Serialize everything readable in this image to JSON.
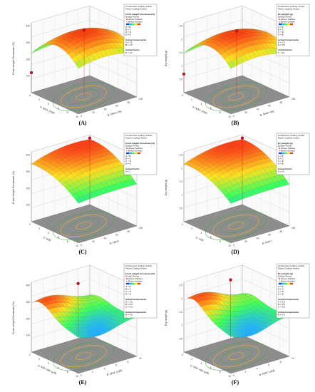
{
  "figure": {
    "panels": [
      {
        "id": "A",
        "label": "(A)",
        "chart_type": "surface3d",
        "z_axis_label": "Fresh weight Cercaceae (%)",
        "x_axis_label": "X: NO3- (mM)",
        "y_axis_label": "B: NH4+ (%)",
        "z_ticks": [
          "100",
          "200",
          "300",
          "400"
        ],
        "x_ticks": [
          "0",
          "2",
          "4",
          "6",
          "8",
          "10"
        ],
        "y_ticks": [
          "0",
          "20",
          "40",
          "60",
          "80",
          "100"
        ],
        "legend": {
          "heading": [
            "Component Coding: Actual",
            "Factor Coding: Actual"
          ],
          "response": "Fresh weight Cercaceae (%)",
          "sub": "Design Points",
          "points": [
            "Above Surface",
            "Below Surface"
          ],
          "factors_title": "",
          "factors": [
            "A = B",
            "B = C",
            "C = D",
            "D = E"
          ],
          "actual_components_title": "Actual Components",
          "actual_components": [
            "A = 1.5",
            "B = 0.5"
          ],
          "actual_factor_title": "Actual Factor",
          "actual_factor": [
            "C = 10"
          ]
        }
      },
      {
        "id": "B",
        "label": "(B)",
        "chart_type": "surface3d",
        "z_axis_label": "Dry weight (g)",
        "x_axis_label": "X: NO3- (mM)",
        "y_axis_label": "B: NH4+ (%)",
        "z_ticks": [
          "0.5",
          "1",
          "1.5",
          "2",
          "2.5"
        ],
        "x_ticks": [
          "0",
          "2",
          "4",
          "6",
          "8",
          "10"
        ],
        "y_ticks": [
          "0",
          "20",
          "40",
          "60",
          "80",
          "100"
        ],
        "legend": {
          "heading": [
            "Component Coding: Actual",
            "Factor Coding: Actual"
          ],
          "response": "Dry weight (g)",
          "sub": "Design Points",
          "points": [
            "Above Surface",
            "Below Surface"
          ],
          "factors_title": "",
          "factors": [
            "A = B",
            "B = C",
            "C = D",
            "D = E"
          ],
          "actual_components_title": "Actual Components",
          "actual_components": [
            "A = 1.5",
            "B = 0.5"
          ],
          "actual_factor_title": "Actual Factor",
          "actual_factor": [
            "C = 10"
          ]
        }
      },
      {
        "id": "C",
        "label": "(C)",
        "chart_type": "surface3d",
        "z_axis_label": "Fresh weight Cercaceae (%)",
        "x_axis_label": "C: KNF",
        "y_axis_label": "B: NH4+",
        "z_ticks": [
          "100",
          "200",
          "300",
          "400"
        ],
        "x_ticks": [
          "0",
          "2",
          "4",
          "6",
          "8",
          "10"
        ],
        "y_ticks": [
          "0",
          "20",
          "40",
          "60",
          "80",
          "100"
        ],
        "legend": {
          "heading": [
            "Component Coding: Actual",
            "Factor Coding: Actual"
          ],
          "response": "Fresh weight Cercaceae (%)",
          "sub": "Design Points",
          "points": [
            "Above Surface",
            "Below Surface"
          ],
          "factors_title": "",
          "factors": [
            "A = B",
            "B = C",
            "C = D",
            "D = E"
          ],
          "actual_components_title": "",
          "actual_components": [],
          "actual_factor_title": "Actual Factor",
          "actual_factor": [
            "A = 1"
          ]
        }
      },
      {
        "id": "D",
        "label": "(D)",
        "chart_type": "surface3d",
        "z_axis_label": "Dry weight (g)",
        "x_axis_label": "C: KNF",
        "y_axis_label": "B: NH4+",
        "z_ticks": [
          "0.5",
          "1",
          "1.5",
          "2",
          "2.5"
        ],
        "x_ticks": [
          "0",
          "2",
          "4",
          "6",
          "8",
          "10"
        ],
        "y_ticks": [
          "0",
          "20",
          "40",
          "60",
          "80",
          "100"
        ],
        "legend": {
          "heading": [
            "Component Coding: Actual",
            "Factor Coding: Actual"
          ],
          "response": "Dry weight (g)",
          "sub": "Design Points",
          "points": [
            "Above Surface",
            "Below Surface"
          ],
          "factors_title": "",
          "factors": [
            "A = B",
            "B = C",
            "C = D",
            "D = E"
          ],
          "actual_components_title": "",
          "actual_components": [],
          "actual_factor_title": "Actual Factor",
          "actual_factor": [
            "A = 10"
          ]
        }
      },
      {
        "id": "E",
        "label": "(E)",
        "chart_type": "surface3d",
        "z_axis_label": "Fresh weight Cercaceae (%)",
        "x_axis_label": "C: KNF ratio (µM)",
        "y_axis_label": "B: NO3- (mM)",
        "z_ticks": [
          "100",
          "200",
          "300",
          "400"
        ],
        "x_ticks": [
          "0",
          "2",
          "4",
          "6",
          "8",
          "10"
        ],
        "y_ticks": [
          "0",
          "2",
          "4",
          "6",
          "8",
          "10"
        ],
        "legend": {
          "heading": [
            "Component Coding: Actual",
            "Factor Coding: Actual"
          ],
          "response": "Fresh weight Cercaceae (%)",
          "sub": "Design Points",
          "points": [
            "Above Surface",
            "Below Surface"
          ],
          "factors_title": "",
          "factors": [
            "A = B",
            "B = C",
            "C = D",
            "D = E"
          ],
          "actual_components_title": "Actual Components",
          "actual_components": [
            "A = 1.5",
            "B = 0.5",
            "C = 0.5"
          ],
          "actual_factor_title": "Actual Components",
          "actual_factor": [
            "B = 0.5"
          ]
        }
      },
      {
        "id": "F",
        "label": "(F)",
        "chart_type": "surface3d",
        "z_axis_label": "Dry weight (g)",
        "x_axis_label": "C: KNF ratio (µM)",
        "y_axis_label": "B: NO3- (mM)",
        "z_ticks": [
          "0.5",
          "1",
          "1.5",
          "2",
          "2.5"
        ],
        "x_ticks": [
          "0",
          "2",
          "4",
          "6",
          "8",
          "10"
        ],
        "y_ticks": [
          "0",
          "2",
          "4",
          "6",
          "8",
          "10"
        ],
        "legend": {
          "heading": [
            "Component Coding: Actual",
            "Factor Coding: Actual"
          ],
          "response": "Dry weight (g)",
          "sub": "Design Points",
          "points": [
            "Above Surface",
            "Below Surface"
          ],
          "factors_title": "",
          "factors": [
            "A = B",
            "B = C",
            "C = D",
            "D = E"
          ],
          "actual_components_title": "Actual Components",
          "actual_components": [
            "A = 1.5",
            "B = 0.5",
            "C = 0.5"
          ],
          "actual_factor_title": "Actual Components",
          "actual_factor": [
            "B = 0.5"
          ]
        }
      }
    ]
  },
  "chart_data": [
    {
      "panel": "A",
      "type": "surface3d",
      "shape": "dome",
      "z_unit_ticks": [
        100,
        200,
        300,
        400
      ],
      "surface_peak": 390,
      "surface_low_corner": 90,
      "colors": {
        "low": "#1f5bff",
        "mid": "#3cff5a",
        "high": "#ff3a10"
      },
      "design_points": [
        {
          "x": 5,
          "y": 50,
          "z": 390,
          "status": "above"
        },
        {
          "x": 0,
          "y": 0,
          "z": 120,
          "status": "above"
        }
      ]
    },
    {
      "panel": "B",
      "type": "surface3d",
      "shape": "dome",
      "z_unit_ticks": [
        0.5,
        1,
        1.5,
        2,
        2.5
      ],
      "surface_peak": 2.4,
      "surface_low_corner": 0.6,
      "colors": {
        "low": "#1f5bff",
        "mid": "#3cff5a",
        "high": "#ff3a10"
      },
      "design_points": [
        {
          "x": 5,
          "y": 50,
          "z": 2.4,
          "status": "above"
        },
        {
          "x": 0,
          "y": 0,
          "z": 0.7,
          "status": "above"
        }
      ]
    },
    {
      "panel": "C",
      "type": "surface3d",
      "shape": "ridge",
      "z_unit_ticks": [
        100,
        200,
        300,
        400
      ],
      "surface_peak": 400,
      "surface_low_corner": 130,
      "colors": {
        "low": "#1f5bff",
        "mid": "#3cff5a",
        "high": "#ff3a10"
      },
      "design_points": [
        {
          "x": 0,
          "y": 100,
          "z": 400,
          "status": "above"
        }
      ]
    },
    {
      "panel": "D",
      "type": "surface3d",
      "shape": "ridge",
      "z_unit_ticks": [
        0.5,
        1,
        1.5,
        2,
        2.5
      ],
      "surface_peak": 2.5,
      "surface_low_corner": 0.8,
      "colors": {
        "low": "#1f5bff",
        "mid": "#3cff5a",
        "high": "#ff3a10"
      },
      "design_points": [
        {
          "x": 0,
          "y": 100,
          "z": 2.5,
          "status": "above"
        }
      ]
    },
    {
      "panel": "E",
      "type": "surface3d",
      "shape": "wave",
      "z_unit_ticks": [
        100,
        200,
        300,
        400
      ],
      "surface_peak": 330,
      "surface_low_corner": 150,
      "colors": {
        "low": "#1f5bff",
        "mid": "#3cff5a",
        "high": "#ff3a10"
      },
      "design_points": [
        {
          "x": 0,
          "y": 8,
          "z": 330,
          "status": "above"
        }
      ]
    },
    {
      "panel": "F",
      "type": "surface3d",
      "shape": "wave",
      "z_unit_ticks": [
        0.5,
        1,
        1.5,
        2,
        2.5
      ],
      "surface_peak": 2.2,
      "surface_low_corner": 0.9,
      "colors": {
        "low": "#1f5bff",
        "mid": "#3cff5a",
        "high": "#ff3a10"
      },
      "design_points": [
        {
          "x": 0,
          "y": 8,
          "z": 2.2,
          "status": "above"
        }
      ]
    }
  ]
}
